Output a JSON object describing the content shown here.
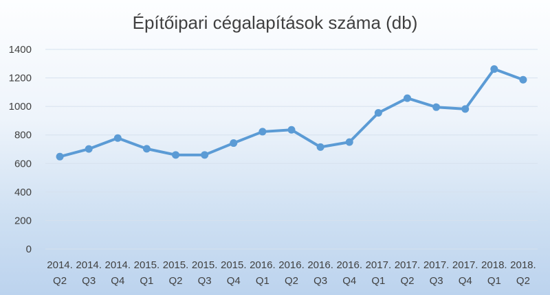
{
  "chart_data": {
    "type": "line",
    "title": "Építőipari cégalapítások száma (db)",
    "xlabel": "",
    "ylabel": "",
    "categories": [
      [
        "2014.",
        "Q2"
      ],
      [
        "2014.",
        "Q3"
      ],
      [
        "2014.",
        "Q4"
      ],
      [
        "2015.",
        "Q1"
      ],
      [
        "2015.",
        "Q2"
      ],
      [
        "2015.",
        "Q3"
      ],
      [
        "2015.",
        "Q4"
      ],
      [
        "2016.",
        "Q1"
      ],
      [
        "2016.",
        "Q2"
      ],
      [
        "2016.",
        "Q3"
      ],
      [
        "2016.",
        "Q4"
      ],
      [
        "2017.",
        "Q1"
      ],
      [
        "2017.",
        "Q2"
      ],
      [
        "2017.",
        "Q3"
      ],
      [
        "2017.",
        "Q4"
      ],
      [
        "2018.",
        "Q1"
      ],
      [
        "2018.",
        "Q2"
      ]
    ],
    "series": [
      {
        "values": [
          648,
          702,
          778,
          703,
          660,
          660,
          743,
          823,
          836,
          715,
          750,
          955,
          1058,
          995,
          982,
          1262,
          1187
        ],
        "color": "#5b9bd5"
      }
    ],
    "ylim": [
      0,
      1400
    ],
    "yticks": [
      "0",
      "200",
      "400",
      "600",
      "800",
      "1000",
      "1200",
      "1400"
    ],
    "grid": true,
    "legend": "none"
  }
}
